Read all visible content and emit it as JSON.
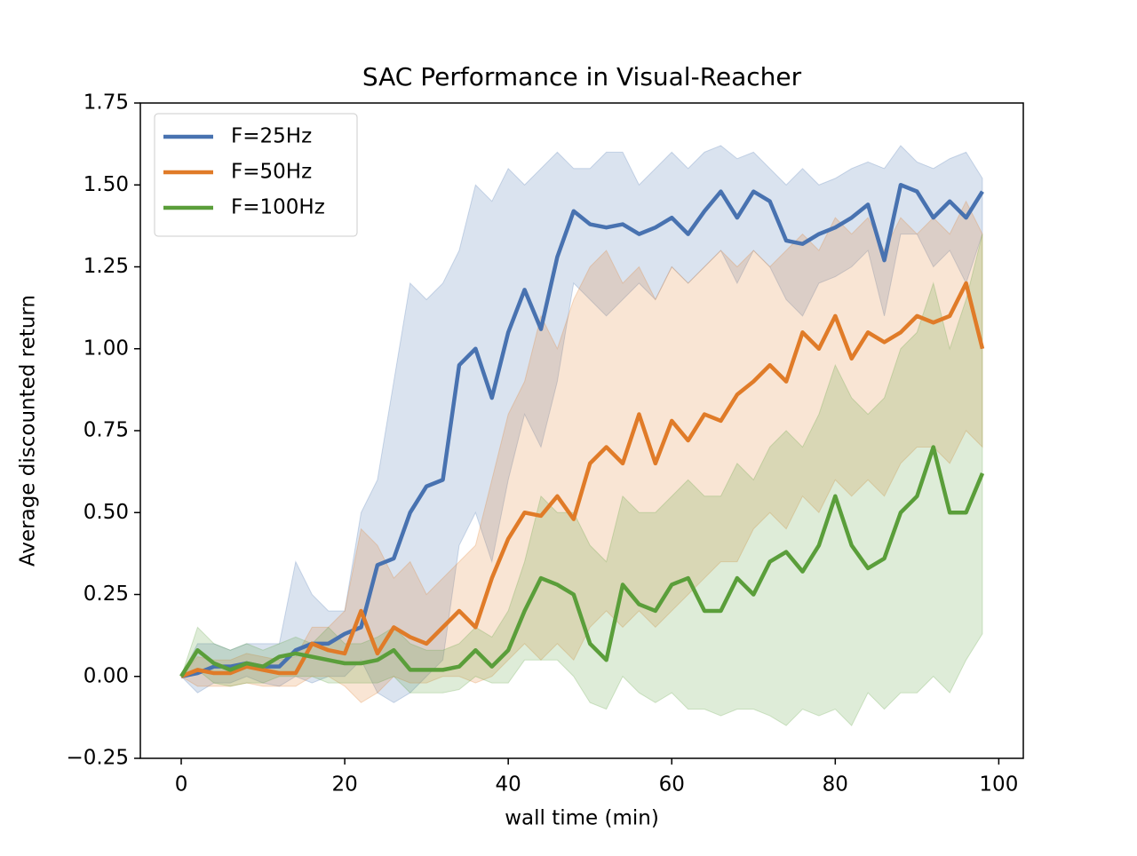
{
  "chart_data": {
    "type": "line",
    "title": "SAC Performance in Visual-Reacher",
    "x_label": "wall time (min)",
    "y_label": "Average discounted return",
    "xlim": [
      -5,
      103
    ],
    "ylim": [
      -0.25,
      1.75
    ],
    "xticks": [
      0,
      20,
      40,
      60,
      80,
      100
    ],
    "yticks": [
      {
        "value": -0.25,
        "label": "−0.25"
      },
      {
        "value": 0,
        "label": "0.00"
      },
      {
        "value": 0.25,
        "label": "0.25"
      },
      {
        "value": 0.5,
        "label": "0.50"
      },
      {
        "value": 0.75,
        "label": "0.75"
      },
      {
        "value": 1,
        "label": "1.00"
      },
      {
        "value": 1.25,
        "label": "1.25"
      },
      {
        "value": 1.5,
        "label": "1.50"
      },
      {
        "value": 1.75,
        "label": "1.75"
      }
    ],
    "legend": "upper left",
    "grid": false,
    "x": [
      0,
      2,
      4,
      6,
      8,
      10,
      12,
      14,
      16,
      18,
      20,
      22,
      24,
      26,
      28,
      30,
      32,
      34,
      36,
      38,
      40,
      42,
      44,
      46,
      48,
      50,
      52,
      54,
      56,
      58,
      60,
      62,
      64,
      66,
      68,
      70,
      72,
      74,
      76,
      78,
      80,
      82,
      84,
      86,
      88,
      90,
      92,
      94,
      96,
      98
    ],
    "series": [
      {
        "name": "F=25Hz",
        "color": "#4872b0",
        "values": [
          0,
          0.01,
          0.03,
          0.03,
          0.04,
          0.03,
          0.03,
          0.08,
          0.1,
          0.1,
          0.13,
          0.15,
          0.34,
          0.36,
          0.5,
          0.58,
          0.6,
          0.95,
          1.0,
          0.85,
          1.05,
          1.18,
          1.06,
          1.28,
          1.42,
          1.38,
          1.37,
          1.38,
          1.35,
          1.37,
          1.4,
          1.35,
          1.42,
          1.48,
          1.4,
          1.48,
          1.45,
          1.33,
          1.32,
          1.35,
          1.37,
          1.4,
          1.44,
          1.27,
          1.5,
          1.48,
          1.4,
          1.45,
          1.4,
          1.48
        ],
        "upper": [
          0,
          0.1,
          0.1,
          0.08,
          0.1,
          0.1,
          0.1,
          0.35,
          0.25,
          0.2,
          0.2,
          0.5,
          0.6,
          0.9,
          1.2,
          1.15,
          1.2,
          1.3,
          1.5,
          1.45,
          1.55,
          1.5,
          1.55,
          1.6,
          1.55,
          1.55,
          1.6,
          1.6,
          1.5,
          1.55,
          1.6,
          1.55,
          1.6,
          1.62,
          1.58,
          1.6,
          1.55,
          1.5,
          1.55,
          1.5,
          1.52,
          1.55,
          1.57,
          1.55,
          1.62,
          1.57,
          1.55,
          1.58,
          1.6,
          1.52
        ],
        "lower": [
          0,
          -0.05,
          -0.02,
          -0.02,
          0,
          -0.02,
          -0.03,
          0,
          -0.02,
          0,
          0,
          0.05,
          -0.05,
          -0.08,
          -0.05,
          0,
          0.05,
          0.4,
          0.5,
          0.35,
          0.6,
          0.8,
          0.7,
          0.9,
          1.2,
          1.15,
          1.1,
          1.15,
          1.2,
          1.15,
          1.25,
          1.2,
          1.25,
          1.3,
          1.2,
          1.3,
          1.25,
          1.15,
          1.1,
          1.2,
          1.22,
          1.25,
          1.3,
          1.1,
          1.35,
          1.35,
          1.25,
          1.3,
          1.2,
          1.35
        ]
      },
      {
        "name": "F=50Hz",
        "color": "#e07b28",
        "values": [
          0,
          0.02,
          0.01,
          0.01,
          0.03,
          0.02,
          0.01,
          0.01,
          0.1,
          0.08,
          0.07,
          0.2,
          0.07,
          0.15,
          0.12,
          0.1,
          0.15,
          0.2,
          0.15,
          0.3,
          0.42,
          0.5,
          0.49,
          0.55,
          0.48,
          0.65,
          0.7,
          0.65,
          0.8,
          0.65,
          0.78,
          0.72,
          0.8,
          0.78,
          0.86,
          0.9,
          0.95,
          0.9,
          1.05,
          1.0,
          1.1,
          0.97,
          1.05,
          1.02,
          1.05,
          1.1,
          1.08,
          1.1,
          1.2,
          1.0
        ],
        "upper": [
          0,
          0.06,
          0.05,
          0.05,
          0.07,
          0.06,
          0.05,
          0.06,
          0.15,
          0.15,
          0.2,
          0.45,
          0.4,
          0.3,
          0.35,
          0.25,
          0.3,
          0.35,
          0.4,
          0.6,
          0.8,
          0.9,
          1.1,
          1.0,
          1.15,
          1.25,
          1.3,
          1.2,
          1.25,
          1.15,
          1.25,
          1.2,
          1.25,
          1.3,
          1.25,
          1.3,
          1.25,
          1.3,
          1.35,
          1.3,
          1.4,
          1.35,
          1.4,
          1.3,
          1.4,
          1.35,
          1.4,
          1.35,
          1.45,
          1.35
        ],
        "lower": [
          0,
          -0.03,
          -0.03,
          -0.03,
          -0.02,
          -0.03,
          -0.03,
          -0.03,
          0,
          0,
          -0.03,
          -0.08,
          -0.05,
          0,
          -0.02,
          -0.02,
          0,
          0,
          -0.02,
          0,
          0.05,
          0.1,
          0.05,
          0.1,
          0.05,
          0.15,
          0.2,
          0.15,
          0.2,
          0.15,
          0.2,
          0.25,
          0.3,
          0.35,
          0.35,
          0.45,
          0.5,
          0.45,
          0.55,
          0.5,
          0.6,
          0.55,
          0.6,
          0.55,
          0.65,
          0.7,
          0.7,
          0.65,
          0.75,
          0.7
        ]
      },
      {
        "name": "F=100Hz",
        "color": "#5a9e3a",
        "values": [
          0,
          0.08,
          0.04,
          0.02,
          0.04,
          0.03,
          0.06,
          0.07,
          0.06,
          0.05,
          0.04,
          0.04,
          0.05,
          0.08,
          0.02,
          0.02,
          0.02,
          0.03,
          0.08,
          0.03,
          0.08,
          0.2,
          0.3,
          0.28,
          0.25,
          0.1,
          0.05,
          0.28,
          0.22,
          0.2,
          0.28,
          0.3,
          0.2,
          0.2,
          0.3,
          0.25,
          0.35,
          0.38,
          0.32,
          0.4,
          0.55,
          0.4,
          0.33,
          0.36,
          0.5,
          0.55,
          0.7,
          0.5,
          0.5,
          0.62
        ],
        "upper": [
          0,
          0.15,
          0.1,
          0.08,
          0.1,
          0.08,
          0.1,
          0.12,
          0.1,
          0.15,
          0.1,
          0.1,
          0.12,
          0.15,
          0.1,
          0.08,
          0.08,
          0.1,
          0.15,
          0.12,
          0.2,
          0.35,
          0.55,
          0.5,
          0.5,
          0.4,
          0.35,
          0.55,
          0.5,
          0.5,
          0.55,
          0.6,
          0.55,
          0.55,
          0.65,
          0.6,
          0.7,
          0.75,
          0.7,
          0.8,
          0.95,
          0.85,
          0.8,
          0.85,
          1.0,
          1.05,
          1.2,
          1.0,
          1.15,
          1.35
        ],
        "lower": [
          0,
          0.02,
          -0.02,
          -0.03,
          -0.02,
          -0.02,
          0,
          0,
          0,
          -0.02,
          -0.02,
          -0.02,
          -0.02,
          0,
          -0.05,
          -0.05,
          -0.05,
          -0.04,
          0,
          -0.02,
          -0.02,
          0.05,
          0.05,
          0.05,
          0,
          -0.08,
          -0.1,
          0,
          -0.05,
          -0.08,
          -0.05,
          -0.1,
          -0.1,
          -0.12,
          -0.1,
          -0.1,
          -0.12,
          -0.15,
          -0.1,
          -0.12,
          -0.1,
          -0.15,
          -0.05,
          -0.1,
          -0.05,
          -0.05,
          0,
          -0.05,
          0.05,
          0.13
        ]
      }
    ]
  }
}
